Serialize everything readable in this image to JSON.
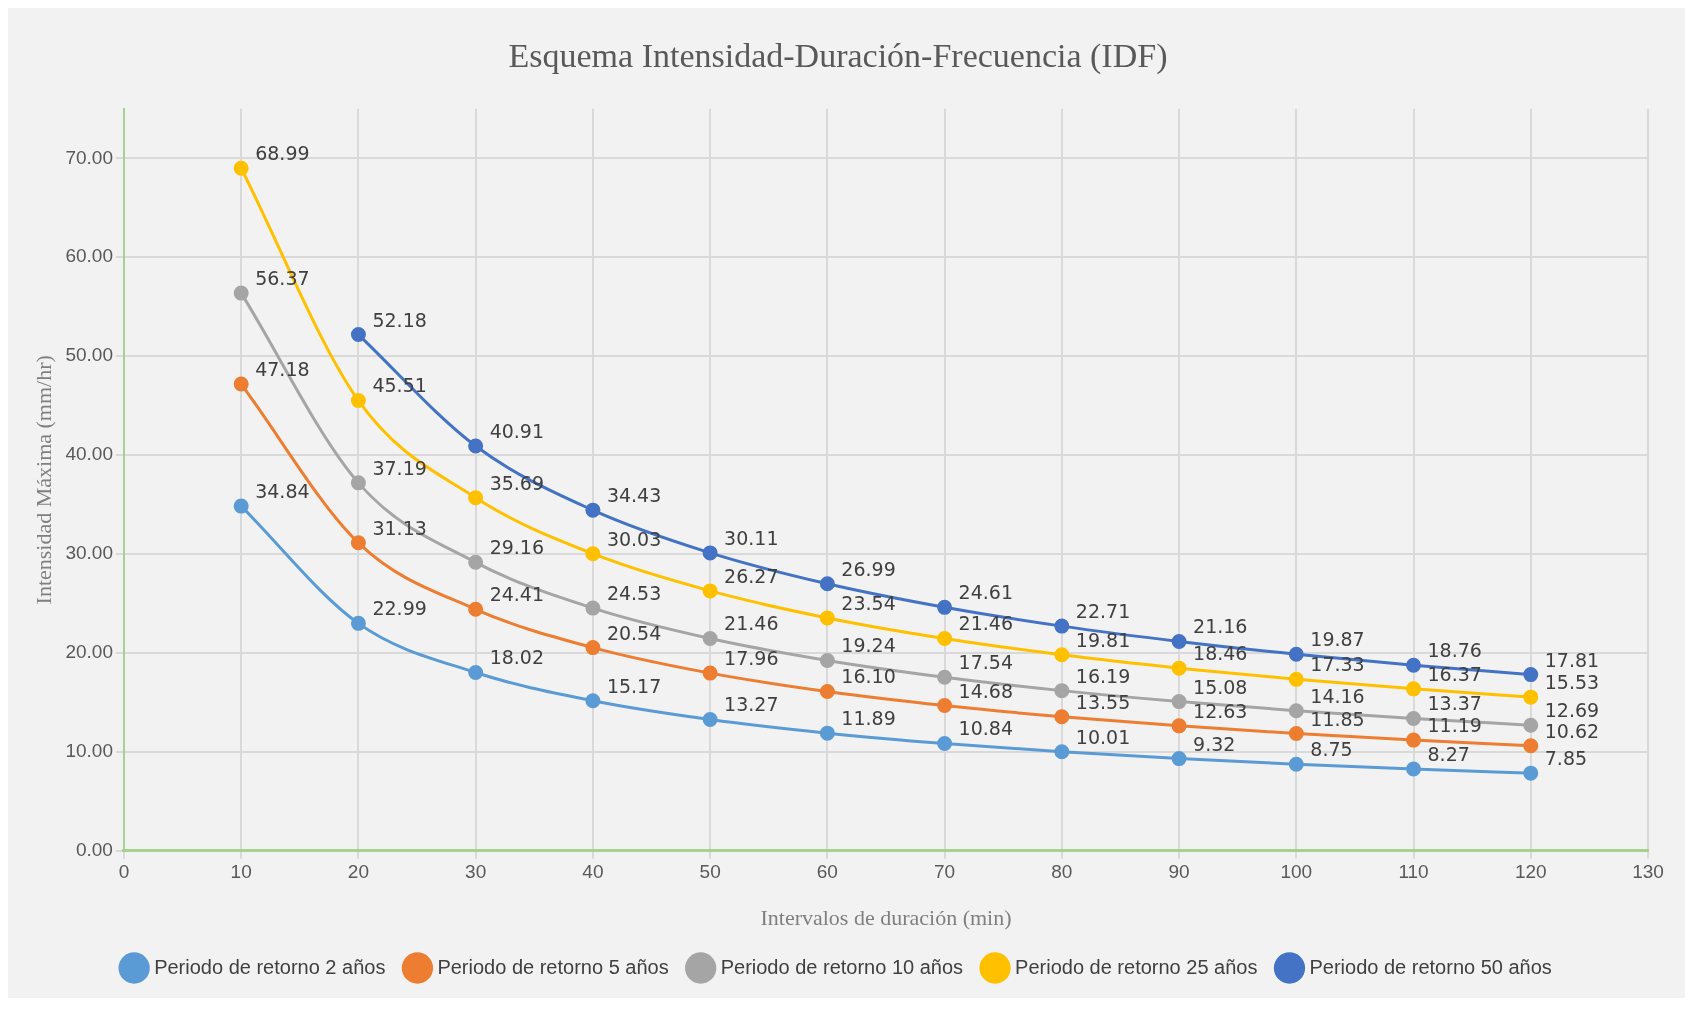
{
  "chart_data": {
    "type": "line",
    "title": "Esquema Intensidad-Duración-Frecuencia (IDF)",
    "xlabel": "Intervalos de duración (min)",
    "ylabel": "Intensidad Máxima (mm/hr)",
    "x": [
      10,
      20,
      30,
      40,
      50,
      60,
      70,
      80,
      90,
      100,
      110,
      120
    ],
    "series": [
      {
        "name": "Periodo de retorno 2 años",
        "color": "#5b9bd5",
        "values": [
          34.84,
          22.99,
          18.02,
          15.17,
          13.27,
          11.89,
          10.84,
          10.01,
          9.32,
          8.75,
          8.27,
          7.85
        ],
        "value_labels": [
          "34.84",
          "22.99",
          "18.02",
          "15.17",
          "13.27",
          "11.89",
          "10.84",
          "10.01",
          "9.32",
          "8.75",
          "8.27",
          "7.85"
        ]
      },
      {
        "name": "Periodo de retorno 5 años",
        "color": "#ed7d31",
        "values": [
          47.18,
          31.13,
          24.41,
          20.54,
          17.96,
          16.1,
          14.68,
          13.55,
          12.63,
          11.85,
          11.19,
          10.62
        ],
        "value_labels": [
          "47.18",
          "31.13",
          "24.41",
          "20.54",
          "17.96",
          "16.10",
          "14.68",
          "13.55",
          "12.63",
          "11.85",
          "11.19",
          "10.62"
        ]
      },
      {
        "name": "Periodo de retorno 10 años",
        "color": "#a5a5a5",
        "values": [
          56.37,
          37.19,
          29.16,
          24.53,
          21.46,
          19.24,
          17.54,
          16.19,
          15.08,
          14.16,
          13.37,
          12.69
        ],
        "value_labels": [
          "56.37",
          "37.19",
          "29.16",
          "24.53",
          "21.46",
          "19.24",
          "17.54",
          "16.19",
          "15.08",
          "14.16",
          "13.37",
          "12.69"
        ]
      },
      {
        "name": "Periodo de retorno 25 años",
        "color": "#ffc000",
        "values": [
          68.99,
          45.51,
          35.69,
          30.03,
          26.27,
          23.54,
          21.46,
          19.81,
          18.46,
          17.33,
          16.37,
          15.53
        ],
        "value_labels": [
          "68.99",
          "45.51",
          "35.69",
          "30.03",
          "26.27",
          "23.54",
          "21.46",
          "19.81",
          "18.46",
          "17.33",
          "16.37",
          "15.53"
        ]
      },
      {
        "name": "Periodo de retorno 50 años",
        "color": "#4472c4",
        "values": [
          null,
          52.18,
          40.91,
          34.43,
          30.11,
          26.99,
          24.61,
          22.71,
          21.16,
          19.87,
          18.76,
          17.81
        ],
        "value_labels": [
          null,
          "52.18",
          "40.91",
          "34.43",
          "30.11",
          "26.99",
          "24.61",
          "22.71",
          "21.16",
          "19.87",
          "18.76",
          "17.81"
        ]
      }
    ],
    "xlim": [
      0,
      130
    ],
    "xticks": [
      0,
      10,
      20,
      30,
      40,
      50,
      60,
      70,
      80,
      90,
      100,
      110,
      120,
      130
    ],
    "ylim": [
      0,
      75
    ],
    "yticks": [
      {
        "value": 0,
        "label": "0.00"
      },
      {
        "value": 10,
        "label": "10.00"
      },
      {
        "value": 20,
        "label": "20.00"
      },
      {
        "value": 30,
        "label": "30.00"
      },
      {
        "value": 40,
        "label": "40.00"
      },
      {
        "value": 50,
        "label": "50.00"
      },
      {
        "value": 60,
        "label": "60.00"
      },
      {
        "value": 70,
        "label": "70.00"
      }
    ],
    "grid": true,
    "legend": "bottom",
    "marker": "circle",
    "line_style": "solid"
  }
}
